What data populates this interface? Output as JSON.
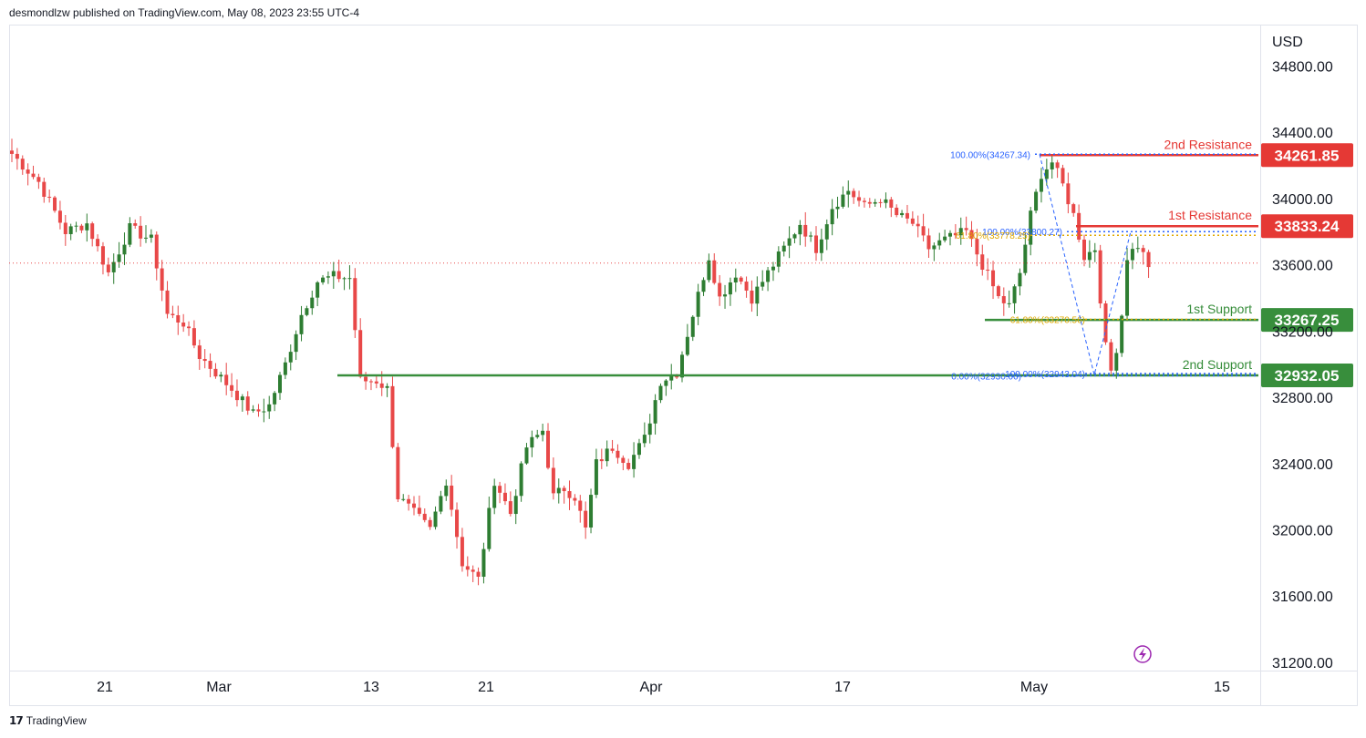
{
  "header": {
    "attribution": "desmondlzw published on TradingView.com, May 08, 2023 23:55 UTC-4"
  },
  "footer": {
    "brand": "TradingView",
    "logo_icon": "tradingview-logo-icon"
  },
  "colors": {
    "up": "#2e7d32",
    "down": "#e84848",
    "resistance": "#e53935",
    "support": "#388e3c",
    "fib_blue": "#2962ff",
    "fib_gold": "#e0a800",
    "last_price_line": "#e84848",
    "flash_icon": "#9c27b0"
  },
  "chart_data": {
    "type": "candlestick",
    "currency_label": "USD",
    "y_axis": {
      "min": 31150,
      "max": 35050,
      "ticks": [
        "34800.00",
        "34400.00",
        "34000.00",
        "33600.00",
        "33200.00",
        "32800.00",
        "32400.00",
        "32000.00",
        "31600.00",
        "31200.00"
      ]
    },
    "x_axis": {
      "labels": [
        "21",
        "Mar",
        "13",
        "21",
        "Apr",
        "17",
        "May",
        "15"
      ]
    },
    "last_price": 33610,
    "levels": [
      {
        "name": "2nd Resistance",
        "value": 34261.85,
        "label": "34261.85",
        "kind": "resistance"
      },
      {
        "name": "1st Resistance",
        "value": 33833.24,
        "label": "33833.24",
        "kind": "resistance"
      },
      {
        "name": "1st Support",
        "value": 33267.25,
        "label": "33267.25",
        "kind": "support"
      },
      {
        "name": "2nd Support",
        "value": 32932.05,
        "label": "32932.05",
        "kind": "support"
      }
    ],
    "fib_labels": [
      {
        "text": "100.00%(34267.34)",
        "value": 34267.34
      },
      {
        "text": "100.00%(33800.27)",
        "value": 33800.27
      },
      {
        "text": "61.80%(33778.25)",
        "value": 33778.25
      },
      {
        "text": "61.80%(33270.56)",
        "value": 33270.56
      },
      {
        "text": "0.00%(32930.00)",
        "value": 32930.0
      },
      {
        "text": "100.00%(32943.04)",
        "value": 32943.04
      }
    ],
    "series_anchors": [
      [
        0,
        34270
      ],
      [
        5,
        34100
      ],
      [
        10,
        33800
      ],
      [
        14,
        33850
      ],
      [
        18,
        33550
      ],
      [
        22,
        33820
      ],
      [
        26,
        33750
      ],
      [
        29,
        33300
      ],
      [
        32,
        33250
      ],
      [
        35,
        33050
      ],
      [
        38,
        32950
      ],
      [
        41,
        32850
      ],
      [
        45,
        32700
      ],
      [
        48,
        32750
      ],
      [
        51,
        33000
      ],
      [
        54,
        33300
      ],
      [
        57,
        33500
      ],
      [
        60,
        33530
      ],
      [
        63,
        33520
      ],
      [
        65,
        32900
      ],
      [
        68,
        32900
      ],
      [
        70,
        32850
      ],
      [
        72,
        32200
      ],
      [
        75,
        32100
      ],
      [
        78,
        32000
      ],
      [
        81,
        32300
      ],
      [
        84,
        31800
      ],
      [
        87,
        31700
      ],
      [
        90,
        32300
      ],
      [
        93,
        32100
      ],
      [
        96,
        32500
      ],
      [
        99,
        32600
      ],
      [
        101,
        32200
      ],
      [
        103,
        32250
      ],
      [
        105,
        32200
      ],
      [
        107,
        32000
      ],
      [
        109,
        32400
      ],
      [
        112,
        32500
      ],
      [
        115,
        32400
      ],
      [
        118,
        32550
      ],
      [
        121,
        32900
      ],
      [
        124,
        32950
      ],
      [
        127,
        33300
      ],
      [
        130,
        33650
      ],
      [
        132,
        33400
      ],
      [
        135,
        33550
      ],
      [
        138,
        33400
      ],
      [
        141,
        33550
      ],
      [
        144,
        33700
      ],
      [
        147,
        33850
      ],
      [
        150,
        33700
      ],
      [
        153,
        33950
      ],
      [
        156,
        34050
      ],
      [
        159,
        33950
      ],
      [
        162,
        34000
      ],
      [
        165,
        33900
      ],
      [
        168,
        33850
      ],
      [
        171,
        33700
      ],
      [
        174,
        33750
      ],
      [
        178,
        33800
      ],
      [
        181,
        33600
      ],
      [
        184,
        33400
      ],
      [
        186,
        33350
      ],
      [
        188,
        33550
      ],
      [
        190,
        33900
      ],
      [
        192,
        34150
      ],
      [
        194,
        34220
      ],
      [
        196,
        34080
      ],
      [
        198,
        33900
      ],
      [
        200,
        33650
      ],
      [
        202,
        33700
      ],
      [
        203,
        33400
      ],
      [
        204,
        33100
      ],
      [
        205,
        32960
      ],
      [
        206,
        33100
      ],
      [
        207,
        33300
      ],
      [
        208,
        33650
      ],
      [
        210,
        33720
      ],
      [
        212,
        33600
      ]
    ]
  }
}
